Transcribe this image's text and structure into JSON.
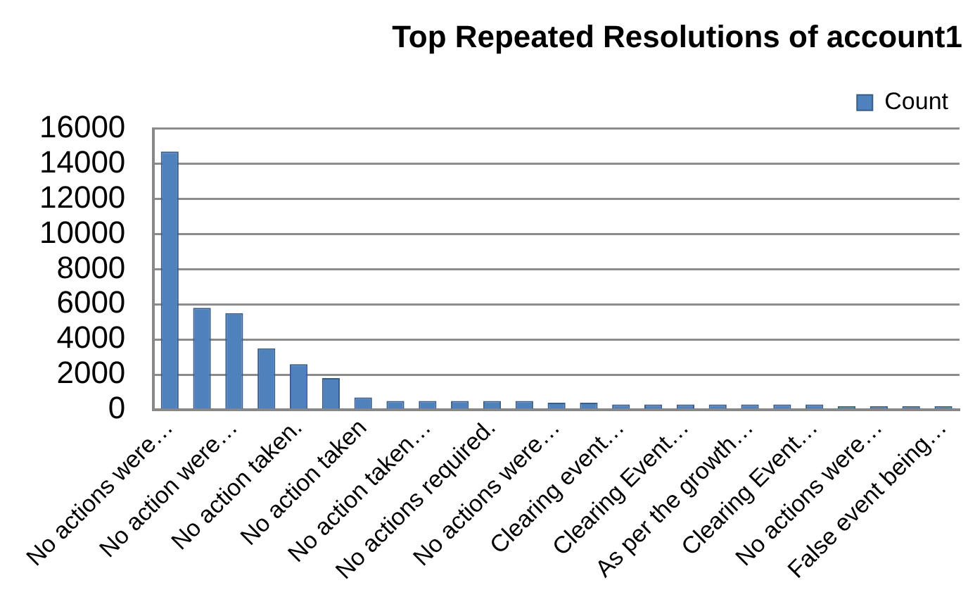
{
  "chart_data": {
    "type": "bar",
    "title": "Top Repeated Resolutions of account1",
    "categories": [
      "No actions were…",
      null,
      "No action were…",
      null,
      "No action taken.",
      null,
      "No action taken",
      null,
      "No action taken…",
      null,
      "No actions required.",
      null,
      "No actions were…",
      null,
      "Clearing event…",
      null,
      "Clearing Event…",
      null,
      "As per the growth…",
      null,
      "Clearing Event…",
      null,
      "No actions were…",
      null,
      "False event being…"
    ],
    "series": [
      {
        "name": "Count",
        "color": "#4f81bd",
        "values": [
          14700,
          5800,
          5500,
          3500,
          2600,
          1800,
          700,
          500,
          500,
          500,
          500,
          500,
          400,
          400,
          300,
          300,
          300,
          300,
          300,
          300,
          300,
          200,
          200,
          200,
          200
        ]
      }
    ],
    "ylim": [
      0,
      16000
    ],
    "yticks": [
      0,
      2000,
      4000,
      6000,
      8000,
      10000,
      12000,
      14000,
      16000
    ],
    "grid": "y",
    "legend": "top right"
  }
}
